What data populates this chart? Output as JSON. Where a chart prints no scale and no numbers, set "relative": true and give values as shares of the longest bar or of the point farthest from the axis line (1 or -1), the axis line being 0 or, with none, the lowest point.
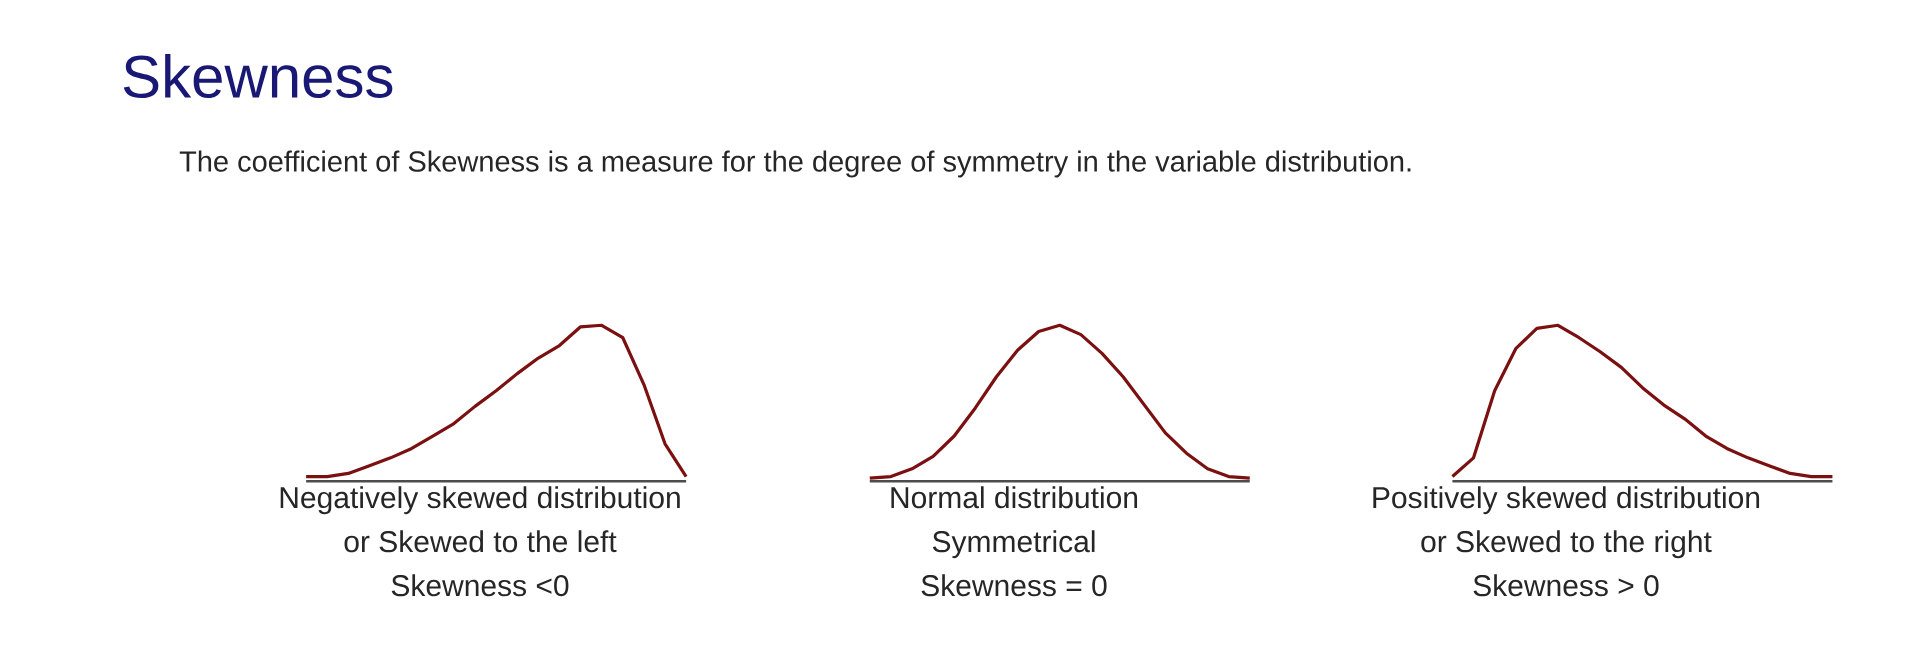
{
  "chart_data": [
    {
      "type": "line",
      "title": "Skewness",
      "subtitle": "The coefficient of Skewness is a measure for the degree of symmetry in the variable distribution.",
      "relative": true,
      "color": "#7b1010",
      "categories": [
        null,
        null,
        null,
        null,
        null,
        null,
        null,
        null,
        null,
        null,
        null,
        null,
        null,
        null,
        null,
        null,
        null,
        null,
        null
      ],
      "values": [
        0.03,
        0.03,
        0.05,
        0.1,
        0.15,
        0.21,
        0.29,
        0.37,
        0.48,
        0.58,
        0.69,
        0.79,
        0.87,
        0.99,
        1.0,
        0.92,
        0.62,
        0.24,
        0.03
      ],
      "annotations": [
        "Negatively skewed distribution",
        "or Skewed to the left",
        "Skewness <0"
      ]
    },
    {
      "type": "line",
      "relative": true,
      "color": "#7b1010",
      "categories": [
        null,
        null,
        null,
        null,
        null,
        null,
        null,
        null,
        null,
        null,
        null,
        null,
        null,
        null,
        null,
        null,
        null,
        null,
        null
      ],
      "values": [
        0.02,
        0.03,
        0.08,
        0.16,
        0.29,
        0.47,
        0.67,
        0.84,
        0.96,
        1.0,
        0.94,
        0.82,
        0.67,
        0.49,
        0.31,
        0.18,
        0.08,
        0.03,
        0.02
      ],
      "annotations": [
        "Normal distribution",
        "Symmetrical",
        "Skewness = 0"
      ]
    },
    {
      "type": "line",
      "relative": true,
      "color": "#7b1010",
      "categories": [
        null,
        null,
        null,
        null,
        null,
        null,
        null,
        null,
        null,
        null,
        null,
        null,
        null,
        null,
        null,
        null,
        null,
        null,
        null
      ],
      "values": [
        0.03,
        0.15,
        0.58,
        0.85,
        0.98,
        1.0,
        0.92,
        0.83,
        0.73,
        0.6,
        0.49,
        0.4,
        0.29,
        0.21,
        0.15,
        0.1,
        0.05,
        0.03,
        0.03
      ],
      "annotations": [
        "Positively skewed distribution",
        "or Skewed to the right",
        "Skewness > 0"
      ]
    }
  ]
}
